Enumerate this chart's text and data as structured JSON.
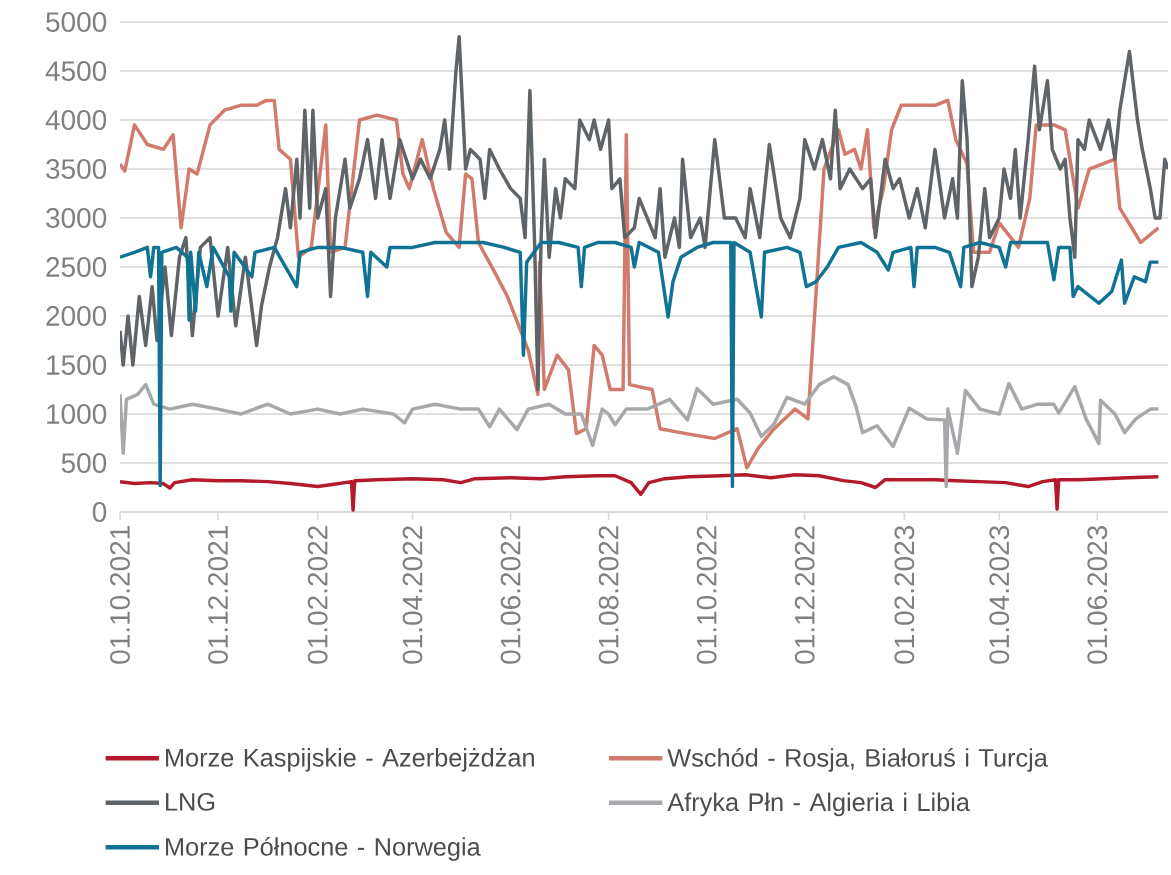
{
  "chart_data": {
    "type": "line",
    "xlim": [
      "2021-10-01",
      "2023-07-15"
    ],
    "ylim": [
      0,
      5000
    ],
    "xticks": [
      {
        "value": "2021-10-01",
        "label": "01.10.2021"
      },
      {
        "value": "2021-12-01",
        "label": "01.12.2021"
      },
      {
        "value": "2022-02-01",
        "label": "01.02.2022"
      },
      {
        "value": "2022-04-01",
        "label": "01.04.2022"
      },
      {
        "value": "2022-06-01",
        "label": "01.06.2022"
      },
      {
        "value": "2022-08-01",
        "label": "01.08.2022"
      },
      {
        "value": "2022-10-01",
        "label": "01.10.2022"
      },
      {
        "value": "2022-12-01",
        "label": "01.12.2022"
      },
      {
        "value": "2023-02-01",
        "label": "01.02.2023"
      },
      {
        "value": "2023-04-01",
        "label": "01.04.2023"
      },
      {
        "value": "2023-06-01",
        "label": "01.06.2023"
      }
    ],
    "yticks": [
      0,
      500,
      1000,
      1500,
      2000,
      2500,
      3000,
      3500,
      4000,
      4500,
      5000
    ],
    "grid": "y",
    "legend": "bottom",
    "line_style": "solid",
    "series": [
      {
        "name": "Morze Kaspijskie - Azerbejżdżan",
        "color": "#b31b2c",
        "x": [
          "2021-10-01",
          "2021-10-10",
          "2021-10-20",
          "2021-10-28",
          "2021-11-01",
          "2021-11-04",
          "2021-11-15",
          "2021-12-01",
          "2021-12-15",
          "2022-01-01",
          "2022-01-15",
          "2022-02-01",
          "2022-02-10",
          "2022-02-22",
          "2022-02-23",
          "2022-02-24",
          "2022-03-10",
          "2022-04-01",
          "2022-04-20",
          "2022-05-01",
          "2022-05-10",
          "2022-06-01",
          "2022-06-20",
          "2022-07-05",
          "2022-07-25",
          "2022-08-05",
          "2022-08-15",
          "2022-08-21",
          "2022-08-26",
          "2022-09-05",
          "2022-09-20",
          "2022-10-10",
          "2022-10-25",
          "2022-11-10",
          "2022-11-25",
          "2022-12-10",
          "2022-12-25",
          "2023-01-05",
          "2023-01-14",
          "2023-01-20",
          "2023-02-05",
          "2023-02-20",
          "2023-03-05",
          "2023-03-20",
          "2023-04-05",
          "2023-04-19",
          "2023-04-28",
          "2023-05-06",
          "2023-05-07",
          "2023-05-08",
          "2023-05-20",
          "2023-06-05",
          "2023-06-20",
          "2023-07-09"
        ],
        "values": [
          310,
          290,
          300,
          290,
          245,
          300,
          330,
          320,
          320,
          310,
          290,
          260,
          280,
          310,
          20,
          320,
          330,
          340,
          330,
          300,
          340,
          350,
          340,
          360,
          370,
          370,
          300,
          180,
          300,
          340,
          360,
          370,
          380,
          350,
          380,
          370,
          320,
          300,
          250,
          330,
          330,
          330,
          320,
          310,
          300,
          260,
          310,
          330,
          30,
          330,
          330,
          340,
          350,
          360
        ]
      },
      {
        "name": "Wschód - Rosja, Białoruś i Turcja",
        "color": "#d27a6c",
        "x": [
          "2021-10-01",
          "2021-10-04",
          "2021-10-10",
          "2021-10-18",
          "2021-10-28",
          "2021-11-03",
          "2021-11-08",
          "2021-11-13",
          "2021-11-18",
          "2021-11-26",
          "2021-12-05",
          "2021-12-15",
          "2021-12-25",
          "2021-12-31",
          "2022-01-05",
          "2022-01-08",
          "2022-01-15",
          "2022-01-20",
          "2022-01-28",
          "2022-02-06",
          "2022-02-09",
          "2022-02-18",
          "2022-02-27",
          "2022-03-10",
          "2022-03-22",
          "2022-03-26",
          "2022-03-30",
          "2022-04-07",
          "2022-04-14",
          "2022-04-22",
          "2022-04-30",
          "2022-05-04",
          "2022-05-08",
          "2022-05-12",
          "2022-05-22",
          "2022-05-30",
          "2022-06-12",
          "2022-06-18",
          "2022-06-19",
          "2022-06-22",
          "2022-06-30",
          "2022-07-07",
          "2022-07-12",
          "2022-07-18",
          "2022-07-23",
          "2022-07-28",
          "2022-08-02",
          "2022-08-10",
          "2022-08-12",
          "2022-08-14",
          "2022-08-28",
          "2022-09-02",
          "2022-09-18",
          "2022-10-06",
          "2022-10-20",
          "2022-10-26",
          "2022-11-02",
          "2022-11-12",
          "2022-11-25",
          "2022-12-03",
          "2022-12-13",
          "2022-12-22",
          "2022-12-26",
          "2023-01-01",
          "2023-01-05",
          "2023-01-09",
          "2023-01-13",
          "2023-01-19",
          "2023-01-24",
          "2023-01-30",
          "2023-02-10",
          "2023-02-20",
          "2023-02-28",
          "2023-03-05",
          "2023-03-12",
          "2023-03-16",
          "2023-03-26",
          "2023-04-01",
          "2023-04-13",
          "2023-04-20",
          "2023-04-24",
          "2023-05-05",
          "2023-05-12",
          "2023-05-20",
          "2023-05-27",
          "2023-06-12",
          "2023-06-15",
          "2023-06-28",
          "2023-07-09"
        ],
        "values": [
          3550,
          3480,
          3950,
          3750,
          3700,
          3850,
          2900,
          3500,
          3450,
          3950,
          4100,
          4150,
          4150,
          4200,
          4200,
          3700,
          3600,
          2600,
          2700,
          3950,
          2650,
          2700,
          4000,
          4050,
          4000,
          3450,
          3300,
          3800,
          3300,
          2850,
          2700,
          3450,
          3400,
          2750,
          2450,
          2200,
          1650,
          1200,
          2550,
          1250,
          1600,
          1450,
          800,
          850,
          1700,
          1600,
          1250,
          1250,
          3850,
          1300,
          1250,
          850,
          800,
          750,
          850,
          450,
          650,
          850,
          1050,
          950,
          3500,
          3900,
          3650,
          3700,
          3500,
          3900,
          2900,
          3300,
          3900,
          4150,
          4150,
          4150,
          4200,
          3800,
          3550,
          2650,
          2650,
          2950,
          2700,
          3200,
          3950,
          3950,
          3900,
          3100,
          3500,
          3600,
          3100,
          2750,
          2900
        ]
      },
      {
        "name": "LNG",
        "color": "#5f6468",
        "x": [
          "2021-10-01",
          "2021-10-03",
          "2021-10-06",
          "2021-10-09",
          "2021-10-13",
          "2021-10-17",
          "2021-10-21",
          "2021-10-24",
          "2021-10-29",
          "2021-11-02",
          "2021-11-07",
          "2021-11-11",
          "2021-11-15",
          "2021-11-20",
          "2021-11-26",
          "2021-12-01",
          "2021-12-07",
          "2021-12-12",
          "2021-12-18",
          "2021-12-25",
          "2021-12-28",
          "2022-01-02",
          "2022-01-07",
          "2022-01-12",
          "2022-01-15",
          "2022-01-19",
          "2022-01-21",
          "2022-01-24",
          "2022-01-27",
          "2022-01-29",
          "2022-02-01",
          "2022-02-06",
          "2022-02-09",
          "2022-02-12",
          "2022-02-18",
          "2022-02-21",
          "2022-02-27",
          "2022-03-04",
          "2022-03-09",
          "2022-03-13",
          "2022-03-18",
          "2022-03-24",
          "2022-04-01",
          "2022-04-06",
          "2022-04-12",
          "2022-04-18",
          "2022-04-21",
          "2022-04-24",
          "2022-04-28",
          "2022-04-30",
          "2022-05-04",
          "2022-05-07",
          "2022-05-13",
          "2022-05-16",
          "2022-05-19",
          "2022-05-25",
          "2022-06-01",
          "2022-06-07",
          "2022-06-10",
          "2022-06-13",
          "2022-06-16",
          "2022-06-18",
          "2022-06-20",
          "2022-06-22",
          "2022-06-25",
          "2022-06-29",
          "2022-07-02",
          "2022-07-05",
          "2022-07-11",
          "2022-07-14",
          "2022-07-20",
          "2022-07-23",
          "2022-07-27",
          "2022-08-01",
          "2022-08-03",
          "2022-08-08",
          "2022-08-11",
          "2022-08-17",
          "2022-08-20",
          "2022-08-30",
          "2022-09-02",
          "2022-09-05",
          "2022-09-11",
          "2022-09-14",
          "2022-09-16",
          "2022-09-21",
          "2022-09-27",
          "2022-09-30",
          "2022-10-06",
          "2022-10-12",
          "2022-10-19",
          "2022-10-25",
          "2022-10-28",
          "2022-11-03",
          "2022-11-09",
          "2022-11-16",
          "2022-11-22",
          "2022-11-28",
          "2022-12-01",
          "2022-12-07",
          "2022-12-12",
          "2022-12-17",
          "2022-12-20",
          "2022-12-23",
          "2022-12-29",
          "2023-01-06",
          "2023-01-11",
          "2023-01-14",
          "2023-01-20",
          "2023-01-25",
          "2023-01-29",
          "2023-02-04",
          "2023-02-09",
          "2023-02-14",
          "2023-02-20",
          "2023-02-26",
          "2023-03-03",
          "2023-03-06",
          "2023-03-09",
          "2023-03-12",
          "2023-03-15",
          "2023-03-19",
          "2023-03-23",
          "2023-03-26",
          "2023-04-01",
          "2023-04-04",
          "2023-04-08",
          "2023-04-11",
          "2023-04-14",
          "2023-04-19",
          "2023-04-23",
          "2023-04-26",
          "2023-05-01",
          "2023-05-04",
          "2023-05-09",
          "2023-05-12",
          "2023-05-15",
          "2023-05-18",
          "2023-05-20",
          "2023-05-24",
          "2023-05-27",
          "2023-06-03",
          "2023-06-08",
          "2023-06-12",
          "2023-06-15",
          "2023-06-21",
          "2023-06-26",
          "2023-06-29",
          "2023-07-04",
          "2023-07-07",
          "2023-07-10",
          "2023-07-13",
          "2023-07-15"
        ],
        "values": [
          1850,
          1500,
          2000,
          1500,
          2200,
          1700,
          2300,
          1750,
          2500,
          1800,
          2600,
          2800,
          1800,
          2700,
          2800,
          2000,
          2700,
          1900,
          2600,
          1700,
          2100,
          2500,
          2800,
          3300,
          2900,
          3600,
          3000,
          4100,
          3100,
          4100,
          3000,
          3300,
          2200,
          3000,
          3600,
          3100,
          3400,
          3800,
          3200,
          3800,
          3200,
          3800,
          3400,
          3600,
          3400,
          3700,
          4000,
          3500,
          4500,
          4850,
          3500,
          3700,
          3600,
          3200,
          3700,
          3500,
          3300,
          3200,
          2800,
          4300,
          2700,
          1250,
          2800,
          3600,
          2600,
          3300,
          3000,
          3400,
          3300,
          4000,
          3800,
          4000,
          3700,
          4000,
          3300,
          3400,
          2800,
          2900,
          3200,
          2800,
          3300,
          2600,
          3000,
          2700,
          3600,
          2800,
          3000,
          2700,
          3800,
          3000,
          3000,
          2800,
          3300,
          2800,
          3750,
          3000,
          2800,
          3200,
          3800,
          3500,
          3800,
          3400,
          4100,
          3300,
          3500,
          3300,
          3400,
          2800,
          3600,
          3300,
          3400,
          3000,
          3300,
          2900,
          3700,
          3000,
          3400,
          3000,
          4400,
          3800,
          2300,
          2600,
          3300,
          2800,
          3000,
          3500,
          3200,
          3700,
          3000,
          3800,
          4550,
          3900,
          4400,
          3700,
          3500,
          3600,
          3000,
          2600,
          3800,
          3700,
          4000,
          3700,
          4000,
          3600,
          4100,
          4700,
          4000,
          3700,
          3300,
          3000,
          3000,
          3600,
          3500
        ]
      },
      {
        "name": "Afryka Płn - Algieria i Libia",
        "color": "#a6a8ab",
        "x": [
          "2021-10-01",
          "2021-10-03",
          "2021-10-05",
          "2021-10-12",
          "2021-10-17",
          "2021-10-22",
          "2021-11-01",
          "2021-11-15",
          "2021-12-01",
          "2021-12-15",
          "2022-01-01",
          "2022-01-15",
          "2022-02-01",
          "2022-02-15",
          "2022-03-01",
          "2022-03-20",
          "2022-03-27",
          "2022-04-01",
          "2022-04-15",
          "2022-05-01",
          "2022-05-12",
          "2022-05-19",
          "2022-05-25",
          "2022-06-05",
          "2022-06-12",
          "2022-06-25",
          "2022-07-05",
          "2022-07-15",
          "2022-07-22",
          "2022-07-28",
          "2022-08-01",
          "2022-08-05",
          "2022-08-12",
          "2022-08-25",
          "2022-09-08",
          "2022-09-19",
          "2022-09-25",
          "2022-10-05",
          "2022-10-20",
          "2022-10-28",
          "2022-11-04",
          "2022-11-12",
          "2022-11-20",
          "2022-12-01",
          "2022-12-10",
          "2022-12-19",
          "2022-12-28",
          "2023-01-02",
          "2023-01-06",
          "2023-01-15",
          "2023-01-25",
          "2023-02-04",
          "2023-02-15",
          "2023-02-26",
          "2023-02-27",
          "2023-02-28",
          "2023-03-06",
          "2023-03-11",
          "2023-03-20",
          "2023-04-01",
          "2023-04-07",
          "2023-04-15",
          "2023-04-25",
          "2023-05-05",
          "2023-05-08",
          "2023-05-18",
          "2023-05-25",
          "2023-06-02",
          "2023-06-03",
          "2023-06-12",
          "2023-06-18",
          "2023-06-25",
          "2023-07-04",
          "2023-07-09"
        ],
        "values": [
          1200,
          600,
          1150,
          1200,
          1300,
          1100,
          1050,
          1100,
          1050,
          1000,
          1100,
          1000,
          1050,
          1000,
          1050,
          1000,
          910,
          1050,
          1100,
          1050,
          1050,
          870,
          1050,
          840,
          1050,
          1100,
          1000,
          1000,
          680,
          1050,
          1000,
          890,
          1050,
          1050,
          1150,
          940,
          1260,
          1100,
          1150,
          1010,
          770,
          900,
          1170,
          1100,
          1300,
          1380,
          1300,
          1070,
          810,
          880,
          670,
          1060,
          950,
          940,
          260,
          1050,
          600,
          1240,
          1050,
          1000,
          1310,
          1050,
          1100,
          1100,
          1010,
          1280,
          950,
          700,
          1140,
          1000,
          810,
          950,
          1050,
          1050
        ]
      },
      {
        "name": "Morze Północne - Norwegia",
        "color": "#117394",
        "x": [
          "2021-10-01",
          "2021-10-10",
          "2021-10-18",
          "2021-10-20",
          "2021-10-22",
          "2021-10-25",
          "2021-10-26",
          "2021-10-27",
          "2021-11-05",
          "2021-11-12",
          "2021-11-13",
          "2021-11-14",
          "2021-11-17",
          "2021-11-19",
          "2021-11-24",
          "2021-11-28",
          "2021-12-08",
          "2021-12-09",
          "2021-12-11",
          "2021-12-22",
          "2021-12-24",
          "2022-01-05",
          "2022-01-19",
          "2022-01-21",
          "2022-02-01",
          "2022-02-15",
          "2022-03-01",
          "2022-03-04",
          "2022-03-06",
          "2022-03-16",
          "2022-03-18",
          "2022-04-01",
          "2022-04-15",
          "2022-05-01",
          "2022-05-15",
          "2022-05-28",
          "2022-06-07",
          "2022-06-09",
          "2022-06-11",
          "2022-06-20",
          "2022-07-01",
          "2022-07-13",
          "2022-07-15",
          "2022-07-17",
          "2022-07-25",
          "2022-08-05",
          "2022-08-15",
          "2022-08-17",
          "2022-08-20",
          "2022-09-01",
          "2022-09-07",
          "2022-09-10",
          "2022-09-15",
          "2022-09-25",
          "2022-10-05",
          "2022-10-16",
          "2022-10-17",
          "2022-10-18",
          "2022-10-28",
          "2022-11-04",
          "2022-11-06",
          "2022-11-20",
          "2022-11-28",
          "2022-12-02",
          "2022-12-08",
          "2022-12-15",
          "2022-12-22",
          "2023-01-05",
          "2023-01-15",
          "2023-01-22",
          "2023-01-25",
          "2023-02-05",
          "2023-02-07",
          "2023-02-09",
          "2023-02-20",
          "2023-03-01",
          "2023-03-08",
          "2023-03-10",
          "2023-03-20",
          "2023-04-01",
          "2023-04-05",
          "2023-04-08",
          "2023-04-20",
          "2023-05-01",
          "2023-05-05",
          "2023-05-08",
          "2023-05-15",
          "2023-05-17",
          "2023-05-20",
          "2023-06-02",
          "2023-06-10",
          "2023-06-16",
          "2023-06-18",
          "2023-06-24",
          "2023-07-01",
          "2023-07-04",
          "2023-07-09"
        ],
        "values": [
          2600,
          2650,
          2700,
          2400,
          2700,
          2700,
          270,
          2650,
          2700,
          2600,
          1960,
          2650,
          2050,
          2650,
          2300,
          2700,
          2400,
          2050,
          2650,
          2400,
          2650,
          2700,
          2300,
          2650,
          2700,
          2700,
          2650,
          2200,
          2650,
          2500,
          2700,
          2700,
          2750,
          2750,
          2750,
          2700,
          2650,
          1600,
          2550,
          2750,
          2750,
          2700,
          2300,
          2700,
          2750,
          2750,
          2700,
          2500,
          2750,
          2650,
          1990,
          2350,
          2600,
          2700,
          2750,
          2750,
          260,
          2750,
          2650,
          1990,
          2650,
          2700,
          2650,
          2300,
          2350,
          2500,
          2700,
          2750,
          2650,
          2470,
          2650,
          2700,
          2300,
          2700,
          2700,
          2650,
          2300,
          2700,
          2750,
          2700,
          2500,
          2750,
          2750,
          2750,
          2370,
          2700,
          2700,
          2200,
          2300,
          2130,
          2250,
          2570,
          2130,
          2400,
          2350,
          2550,
          2550
        ]
      }
    ]
  }
}
